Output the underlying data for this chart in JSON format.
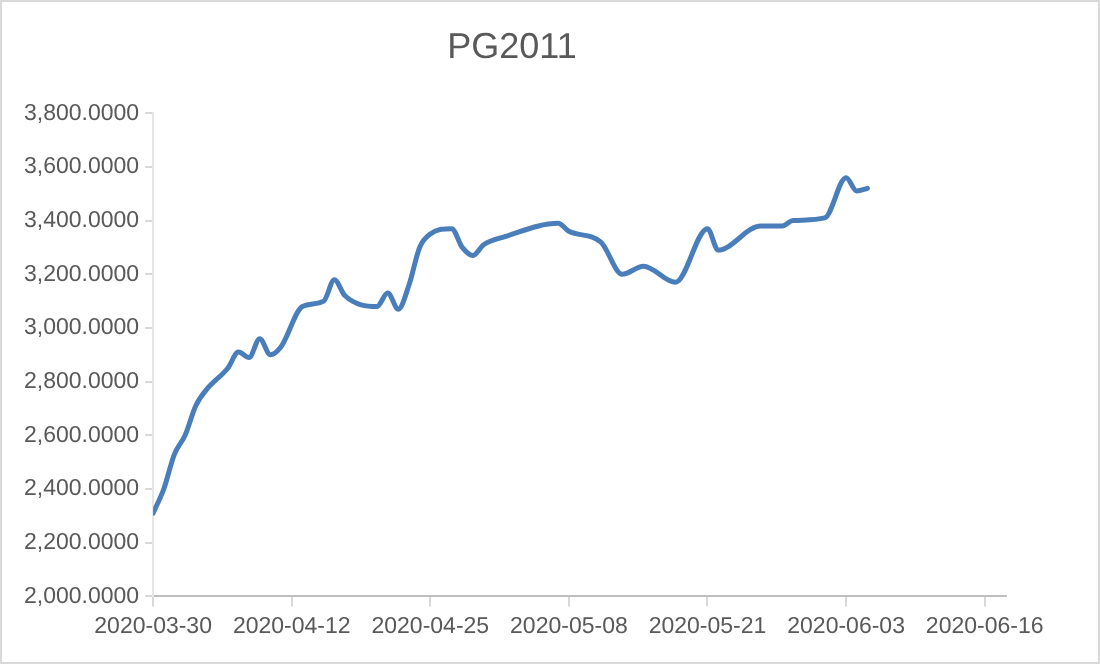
{
  "chart_data": {
    "type": "line",
    "title": "PG2011",
    "x": [
      "2020-03-30",
      "2020-03-31",
      "2020-04-01",
      "2020-04-02",
      "2020-04-03",
      "2020-04-04",
      "2020-04-06",
      "2020-04-07",
      "2020-04-08",
      "2020-04-09",
      "2020-04-10",
      "2020-04-11",
      "2020-04-13",
      "2020-04-15",
      "2020-04-16",
      "2020-04-17",
      "2020-04-20",
      "2020-04-21",
      "2020-04-22",
      "2020-04-23",
      "2020-04-24",
      "2020-04-25",
      "2020-04-27",
      "2020-04-28",
      "2020-04-29",
      "2020-04-30",
      "2020-05-02",
      "2020-05-07",
      "2020-05-08",
      "2020-05-11",
      "2020-05-13",
      "2020-05-15",
      "2020-05-18",
      "2020-05-21",
      "2020-05-22",
      "2020-05-26",
      "2020-05-28",
      "2020-05-29",
      "2020-06-01",
      "2020-06-03",
      "2020-06-04",
      "2020-06-05"
    ],
    "series": [
      {
        "color": "#4a7ebb",
        "values": [
          2310,
          2400,
          2530,
          2600,
          2710,
          2770,
          2850,
          2910,
          2890,
          2960,
          2900,
          2930,
          3080,
          3100,
          3180,
          3120,
          3080,
          3130,
          3070,
          3160,
          3300,
          3350,
          3370,
          3300,
          3270,
          3310,
          3340,
          3390,
          3360,
          3320,
          3200,
          3230,
          3170,
          3370,
          3290,
          3380,
          3380,
          3400,
          3410,
          3560,
          3510,
          3520
        ]
      }
    ],
    "xlim": [
      "2020-03-30",
      "2020-06-18"
    ],
    "xticks": [
      "2020-03-30",
      "2020-04-12",
      "2020-04-25",
      "2020-05-08",
      "2020-05-21",
      "2020-06-03",
      "2020-06-16"
    ],
    "ylim": [
      2000,
      3800
    ],
    "yticks": [
      {
        "value": 2000,
        "label": "2,000.0000"
      },
      {
        "value": 2200,
        "label": "2,200.0000"
      },
      {
        "value": 2400,
        "label": "2,400.0000"
      },
      {
        "value": 2600,
        "label": "2,600.0000"
      },
      {
        "value": 2800,
        "label": "2,800.0000"
      },
      {
        "value": 3000,
        "label": "3,000.0000"
      },
      {
        "value": 3200,
        "label": "3,200.0000"
      },
      {
        "value": 3400,
        "label": "3,400.0000"
      },
      {
        "value": 3600,
        "label": "3,600.0000"
      },
      {
        "value": 3800,
        "label": "3,800.0000"
      }
    ],
    "grid": false,
    "legend": false,
    "marker": "none",
    "line_style": "solid"
  }
}
